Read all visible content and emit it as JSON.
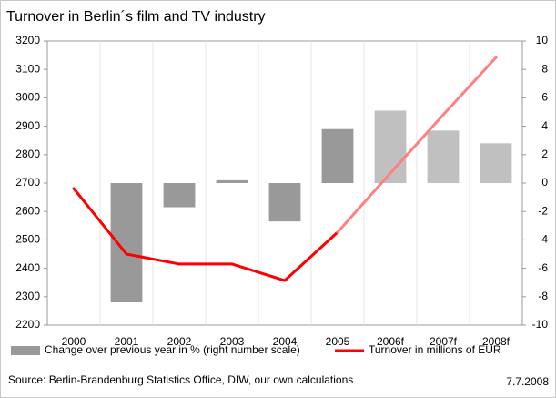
{
  "chart_data": {
    "type": "bar-line",
    "title": "Turnover in Berlin´s film and TV industry",
    "categories": [
      "2000",
      "2001",
      "2002",
      "2003",
      "2004",
      "2005",
      "2006f",
      "2007f",
      "2008f"
    ],
    "series": [
      {
        "name": "Change over previous year in % (right number scale)",
        "type": "bar",
        "axis": "y2",
        "color": "#999999",
        "colors": [
          null,
          "#999999",
          "#999999",
          "#999999",
          "#999999",
          "#999999",
          "#c0c0c0",
          "#c0c0c0",
          "#c0c0c0"
        ],
        "values": [
          null,
          -8.4,
          -1.7,
          0.2,
          -2.7,
          3.8,
          5.1,
          3.7,
          2.8
        ]
      },
      {
        "name": "Turnover in millions of EUR",
        "type": "line",
        "axis": "y",
        "color": "#ff0000",
        "segment_colors": [
          "#ff0000",
          "#ff0000",
          "#ff0000",
          "#ff0000",
          "#ff0000",
          "#ff8080",
          "#ff8080",
          "#ff8080"
        ],
        "values": [
          2681,
          2450,
          2415,
          2415,
          2357,
          2527,
          2735,
          2940,
          3142
        ]
      }
    ],
    "ylim": [
      2200,
      3200
    ],
    "yticks": [
      2200,
      2300,
      2400,
      2500,
      2600,
      2700,
      2800,
      2900,
      3000,
      3100,
      3200
    ],
    "y2lim": [
      -10,
      10
    ],
    "y2ticks": [
      -10,
      -8,
      -6,
      -4,
      -2,
      0,
      2,
      4,
      6,
      8,
      10
    ],
    "source": "Source: Berlin-Brandenburg Statistics Office, DIW, our own calculations",
    "date": "7.7.2008"
  }
}
